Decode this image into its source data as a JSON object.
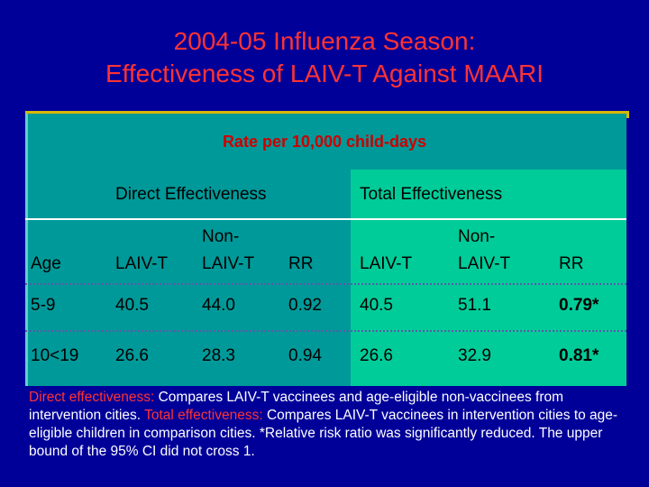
{
  "title": {
    "line1": "2004-05 Influenza Season:",
    "line2": "Effectiveness of LAIV-T Against MAARI"
  },
  "rate_label": "Rate per 10,000 child-days",
  "groups": {
    "direct": "Direct Effectiveness",
    "total": "Total Effectiveness"
  },
  "columns": {
    "age": "Age",
    "laiv_direct": "LAIV-T",
    "non_top_direct": "Non-",
    "non_bottom_direct": "LAIV-T",
    "rr_direct": "RR",
    "laiv_total": "LAIV-T",
    "non_top_total": "Non-",
    "non_bottom_total": "LAIV-T",
    "rr_total": "RR"
  },
  "rows": [
    {
      "age": "5-9",
      "d_laiv": "40.5",
      "d_non": "44.0",
      "d_rr": "0.92",
      "t_laiv": "40.5",
      "t_non": "51.1",
      "t_rr": "0.79*"
    },
    {
      "age": "10<19",
      "d_laiv": "26.6",
      "d_non": "28.3",
      "d_rr": "0.94",
      "t_laiv": "26.6",
      "t_non": "32.9",
      "t_rr": "0.81*"
    }
  ],
  "footnote": {
    "direct_label": "Direct effectiveness:",
    "direct_text": " Compares LAIV-T vaccinees and age-eligible non-vaccinees from intervention cities. ",
    "total_label": "Total effectiveness:",
    "total_text": " Compares LAIV-T vaccinees in intervention cities to age-eligible children in comparison cities. *Relative risk ratio was significantly reduced. The upper bound of the 95% CI did not cross 1."
  },
  "colors": {
    "background": "#000099",
    "title": "#ff3333",
    "table_main": "#009999",
    "total_panel": "#00cc99",
    "accent_bar": "#d8b800",
    "rate_label": "#cc0000"
  }
}
